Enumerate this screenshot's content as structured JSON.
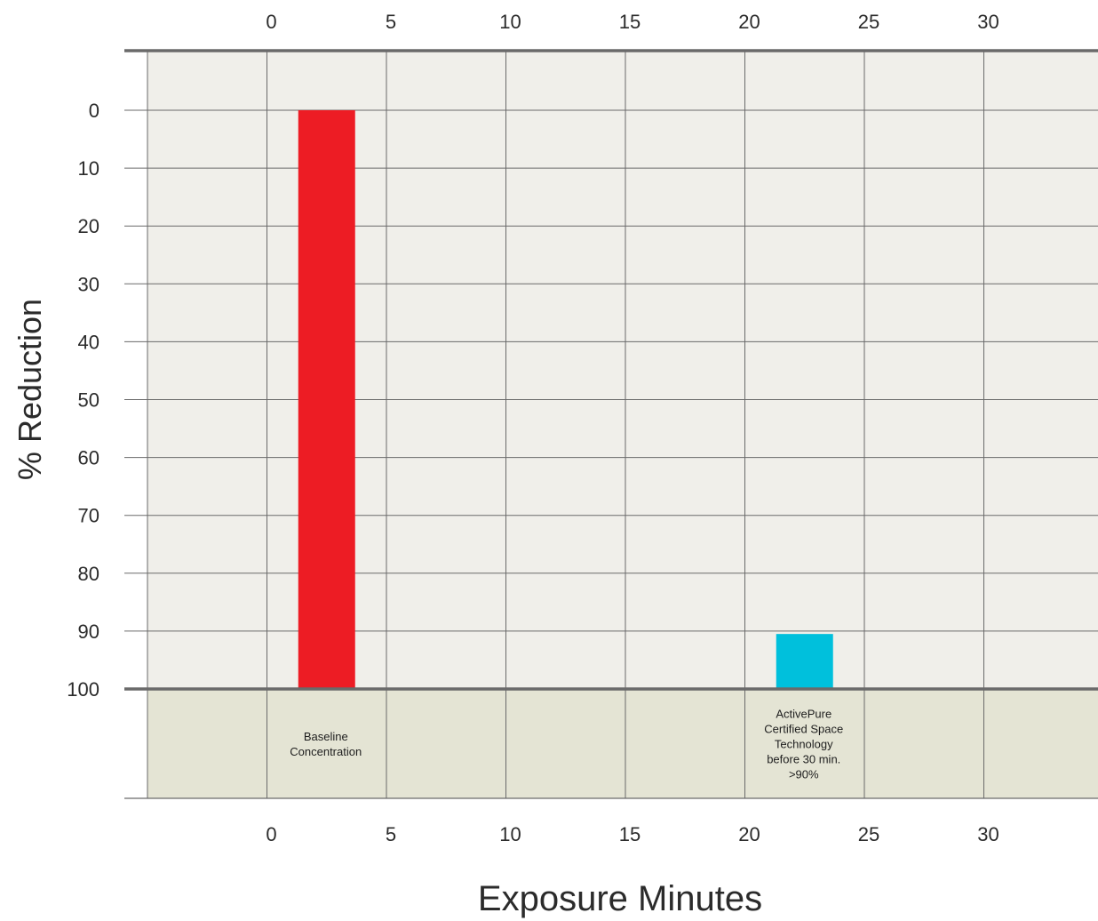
{
  "chart_data": {
    "type": "bar",
    "xlabel": "Exposure Minutes",
    "ylabel": "% Reduction",
    "x_ticks": [
      0,
      5,
      10,
      15,
      20,
      25,
      30
    ],
    "y_ticks": [
      0,
      10,
      20,
      30,
      40,
      50,
      60,
      70,
      80,
      90,
      100
    ],
    "xlim": [
      -5,
      35
    ],
    "ylim": [
      0,
      100
    ],
    "y_inverted": true,
    "grid": true,
    "bars": [
      {
        "x": 2.5,
        "value": 100,
        "color": "#ed1c24",
        "label_lines": [
          "Baseline",
          "Concentration"
        ]
      },
      {
        "x": 22.5,
        "value": 9.5,
        "color": "#00c0dc",
        "label_lines": [
          "ActivePure",
          "Certified Space",
          "Technology",
          "before 30 min.",
          ">90%"
        ]
      }
    ]
  },
  "colors": {
    "plot_bg": "#f0efea",
    "label_band_bg": "#e4e4d4",
    "grid": "#6a6a6a",
    "frame": "#6a6a6a"
  }
}
